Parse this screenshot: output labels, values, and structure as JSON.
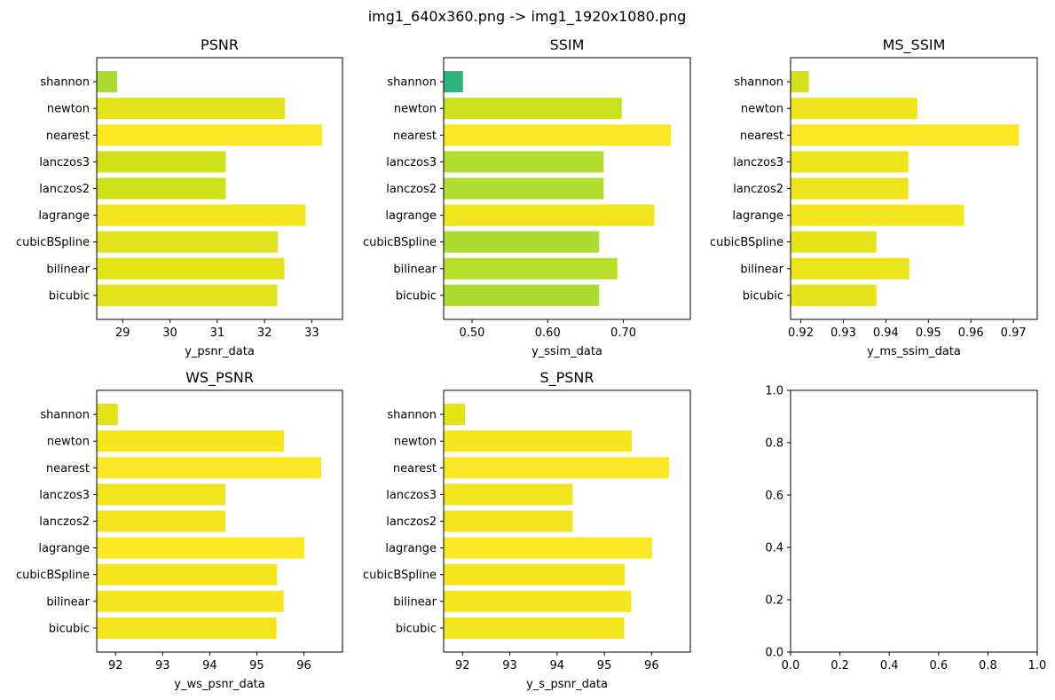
{
  "figure": {
    "title": "img1_640x360.png -> img1_1920x1080.png"
  },
  "chart_data": [
    {
      "type": "bar",
      "orientation": "horizontal",
      "title": "PSNR",
      "xlabel": "y_psnr_data",
      "ylabel": "",
      "categories": [
        "bicubic",
        "bilinear",
        "cubicBSpline",
        "lagrange",
        "lanczos2",
        "lanczos3",
        "nearest",
        "newton",
        "shannon"
      ],
      "values": [
        32.27,
        32.42,
        32.28,
        32.87,
        31.18,
        31.18,
        33.22,
        32.43,
        28.88
      ],
      "colors": [
        "#e1e219",
        "#e5e418",
        "#e1e219",
        "#f4e61e",
        "#cfe11c",
        "#cfe11c",
        "#fde725",
        "#e5e418",
        "#addc30"
      ],
      "xlim": [
        28.45,
        33.65
      ],
      "xticks": [
        29,
        30,
        31,
        32,
        33
      ],
      "grid": false
    },
    {
      "type": "bar",
      "orientation": "horizontal",
      "title": "SSIM",
      "xlabel": "y_ssim_data",
      "ylabel": "",
      "categories": [
        "bicubic",
        "bilinear",
        "cubicBSpline",
        "lagrange",
        "lanczos2",
        "lanczos3",
        "nearest",
        "newton",
        "shannon"
      ],
      "values": [
        0.668,
        0.692,
        0.668,
        0.741,
        0.674,
        0.674,
        0.763,
        0.698,
        0.488
      ],
      "colors": [
        "#addc30",
        "#b5de2b",
        "#addc30",
        "#f1e51d",
        "#b0dd2f",
        "#b0dd2f",
        "#fde725",
        "#cce11e",
        "#2db27d"
      ],
      "xlim": [
        0.4625,
        0.7885
      ],
      "xticks": [
        0.5,
        0.6,
        0.7
      ],
      "grid": false
    },
    {
      "type": "bar",
      "orientation": "horizontal",
      "title": "MS_SSIM",
      "xlabel": "y_ms_ssim_data",
      "ylabel": "",
      "categories": [
        "bicubic",
        "bilinear",
        "cubicBSpline",
        "lagrange",
        "lanczos2",
        "lanczos3",
        "nearest",
        "newton",
        "shannon"
      ],
      "values": [
        0.9378,
        0.9455,
        0.9378,
        0.9584,
        0.9453,
        0.9453,
        0.9713,
        0.9474,
        0.9219
      ],
      "colors": [
        "#e6e419",
        "#ece51b",
        "#e6e419",
        "#f6e620",
        "#ece51b",
        "#ece51b",
        "#fde725",
        "#eee51c",
        "#d2e21b"
      ],
      "xlim": [
        0.9176,
        0.9756
      ],
      "xticks": [
        0.92,
        0.93,
        0.94,
        0.95,
        0.96,
        0.97
      ],
      "grid": false
    },
    {
      "type": "bar",
      "orientation": "horizontal",
      "title": "WS_PSNR",
      "xlabel": "y_ws_psnr_data",
      "ylabel": "",
      "categories": [
        "bicubic",
        "bilinear",
        "cubicBSpline",
        "lagrange",
        "lanczos2",
        "lanczos3",
        "nearest",
        "newton",
        "shannon"
      ],
      "values": [
        95.42,
        95.57,
        95.43,
        96.01,
        94.33,
        94.33,
        96.37,
        95.58,
        92.05
      ],
      "colors": [
        "#f4e61e",
        "#f6e620",
        "#f4e61e",
        "#fbe723",
        "#f1e51d",
        "#f1e51d",
        "#fde725",
        "#f6e620",
        "#e5e418"
      ],
      "xlim": [
        91.6,
        96.82
      ],
      "xticks": [
        92,
        93,
        94,
        95,
        96
      ],
      "grid": false
    },
    {
      "type": "bar",
      "orientation": "horizontal",
      "title": "S_PSNR",
      "xlabel": "y_s_psnr_data",
      "ylabel": "",
      "categories": [
        "bicubic",
        "bilinear",
        "cubicBSpline",
        "lagrange",
        "lanczos2",
        "lanczos3",
        "nearest",
        "newton",
        "shannon"
      ],
      "values": [
        95.42,
        95.57,
        95.43,
        96.01,
        94.33,
        94.33,
        96.37,
        95.58,
        92.05
      ],
      "colors": [
        "#f4e61e",
        "#f6e620",
        "#f4e61e",
        "#fbe723",
        "#f1e51d",
        "#f1e51d",
        "#fde725",
        "#f6e620",
        "#e5e418"
      ],
      "xlim": [
        91.6,
        96.82
      ],
      "xticks": [
        92,
        93,
        94,
        95,
        96
      ],
      "grid": false
    },
    {
      "type": "empty",
      "title": "",
      "xlabel": "",
      "ylabel": "",
      "xlim": [
        0,
        1
      ],
      "ylim": [
        0,
        1
      ],
      "xticks": [
        0.0,
        0.2,
        0.4,
        0.6,
        0.8,
        1.0
      ],
      "yticks": [
        0.0,
        0.2,
        0.4,
        0.6,
        0.8,
        1.0
      ],
      "grid": false
    }
  ]
}
